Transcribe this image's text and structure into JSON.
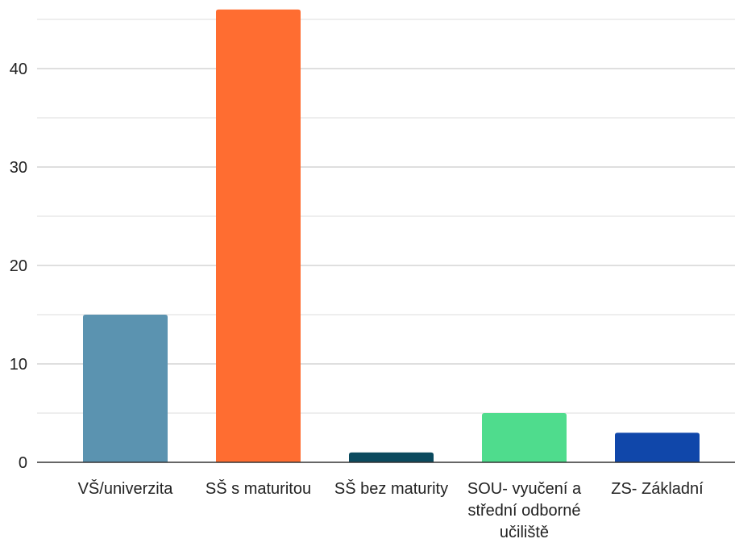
{
  "chart_data": {
    "type": "bar",
    "categories": [
      [
        "VŠ/univerzita"
      ],
      [
        "SŠ s maturitou"
      ],
      [
        "SŠ bez maturity"
      ],
      [
        "SOU- vyučení a",
        "střední odborné",
        "učiliště"
      ],
      [
        "ZS- Základní"
      ]
    ],
    "values": [
      15,
      46,
      1,
      5,
      3
    ],
    "colors": [
      "#5b93b0",
      "#ff6d31",
      "#0b4a5e",
      "#4fdc8d",
      "#1047aa"
    ],
    "yticks": [
      "0",
      "10",
      "20",
      "30",
      "40"
    ],
    "ylim": [
      0,
      46
    ],
    "grid": true,
    "minor_grid": true,
    "title": "",
    "xlabel": "",
    "ylabel": ""
  }
}
